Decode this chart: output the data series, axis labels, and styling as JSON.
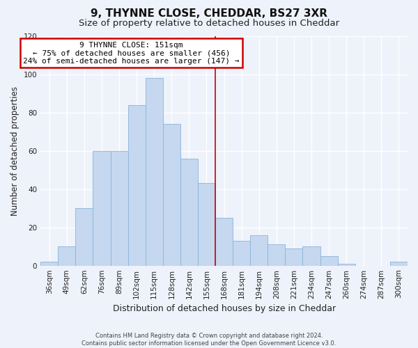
{
  "title": "9, THYNNE CLOSE, CHEDDAR, BS27 3XR",
  "subtitle": "Size of property relative to detached houses in Cheddar",
  "xlabel": "Distribution of detached houses by size in Cheddar",
  "ylabel": "Number of detached properties",
  "footnote1": "Contains HM Land Registry data © Crown copyright and database right 2024.",
  "footnote2": "Contains public sector information licensed under the Open Government Licence v3.0.",
  "bar_labels": [
    "36sqm",
    "49sqm",
    "62sqm",
    "76sqm",
    "89sqm",
    "102sqm",
    "115sqm",
    "128sqm",
    "142sqm",
    "155sqm",
    "168sqm",
    "181sqm",
    "194sqm",
    "208sqm",
    "221sqm",
    "234sqm",
    "247sqm",
    "260sqm",
    "274sqm",
    "287sqm",
    "300sqm"
  ],
  "bar_values": [
    2,
    10,
    30,
    60,
    60,
    84,
    98,
    74,
    56,
    43,
    25,
    13,
    16,
    11,
    9,
    10,
    5,
    1,
    0,
    0,
    2
  ],
  "bar_color": "#c5d8f0",
  "bar_edge_color": "#8ab4d8",
  "vline_x_index": 9.5,
  "vline_color": "#cc0000",
  "annotation_title": "9 THYNNE CLOSE: 151sqm",
  "annotation_line1": "← 75% of detached houses are smaller (456)",
  "annotation_line2": "24% of semi-detached houses are larger (147) →",
  "annotation_box_color": "#ffffff",
  "annotation_box_edge_color": "#cc0000",
  "ylim": [
    0,
    120
  ],
  "yticks": [
    0,
    20,
    40,
    60,
    80,
    100,
    120
  ],
  "bg_color": "#eef2fa",
  "plot_bg_color": "#eef2fa",
  "grid_color": "#ffffff",
  "title_fontsize": 11,
  "subtitle_fontsize": 9.5,
  "xlabel_fontsize": 9,
  "ylabel_fontsize": 8.5,
  "tick_fontsize": 7.5,
  "annotation_fontsize": 8,
  "footnote_fontsize": 6
}
